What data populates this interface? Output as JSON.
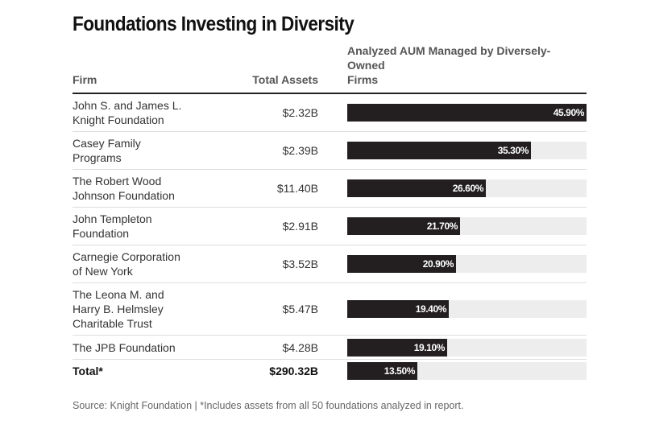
{
  "title": "Foundations Investing in Diversity",
  "columns": {
    "firm": "Firm",
    "assets": "Total Assets",
    "aum_line1": "Analyzed AUM Managed by Diversely-Owned",
    "aum_line2": "Firms"
  },
  "source": "Source: Knight Foundation | *Includes assets from all 50 foundations analyzed in report.",
  "colors": {
    "bar": "#231f20",
    "track": "#ededed"
  },
  "chart_data": {
    "type": "bar",
    "orientation": "horizontal",
    "xlim": [
      0,
      45.9
    ],
    "rows": [
      {
        "firm_lines": [
          "John S. and James L.",
          "Knight Foundation"
        ],
        "assets": "$2.32B",
        "value": 45.9,
        "label": "45.90%"
      },
      {
        "firm_lines": [
          "Casey Family",
          "Programs"
        ],
        "assets": "$2.39B",
        "value": 35.3,
        "label": "35.30%"
      },
      {
        "firm_lines": [
          "The Robert Wood",
          "Johnson Foundation"
        ],
        "assets": "$11.40B",
        "value": 26.6,
        "label": "26.60%"
      },
      {
        "firm_lines": [
          "John Templeton",
          "Foundation"
        ],
        "assets": "$2.91B",
        "value": 21.7,
        "label": "21.70%"
      },
      {
        "firm_lines": [
          "Carnegie Corporation",
          "of New York"
        ],
        "assets": "$3.52B",
        "value": 20.9,
        "label": "20.90%"
      },
      {
        "firm_lines": [
          "The Leona M. and",
          "Harry B. Helmsley",
          "Charitable Trust"
        ],
        "assets": "$5.47B",
        "value": 19.4,
        "label": "19.40%"
      },
      {
        "firm_lines": [
          "The JPB Foundation"
        ],
        "assets": "$4.28B",
        "value": 19.1,
        "label": "19.10%"
      },
      {
        "firm_lines": [
          "Total*"
        ],
        "assets": "$290.32B",
        "value": 13.5,
        "label": "13.50%",
        "total": true
      }
    ]
  }
}
